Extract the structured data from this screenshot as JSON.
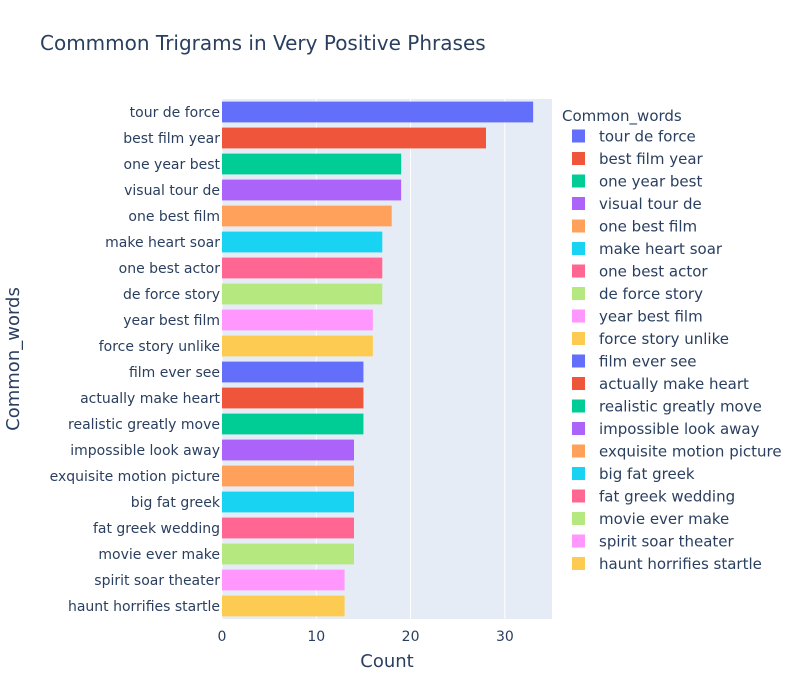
{
  "chart_data": {
    "type": "bar",
    "orientation": "horizontal",
    "title": "Commmon Trigrams in Very Positive Phrases",
    "xlabel": "Count",
    "ylabel": "Common_words",
    "xlim": [
      0,
      35
    ],
    "xticks": [
      "0",
      "10",
      "20",
      "30"
    ],
    "grid": true,
    "legend_title": "Common_words",
    "legend_position": "right",
    "categories": [
      "tour de force",
      "best film year",
      "one year best",
      "visual tour de",
      "one best film",
      "make heart soar",
      "one best actor",
      "de force story",
      "year best film",
      "force story unlike",
      "film ever see",
      "actually make heart",
      "realistic greatly move",
      "impossible look away",
      "exquisite motion picture",
      "big fat greek",
      "fat greek wedding",
      "movie ever make",
      "spirit soar theater",
      "haunt horrifies startle"
    ],
    "values": [
      33,
      28,
      19,
      19,
      18,
      17,
      17,
      17,
      16,
      16,
      15,
      15,
      15,
      14,
      14,
      14,
      14,
      14,
      13,
      13
    ],
    "colors": [
      "#636efa",
      "#EF553B",
      "#00cc96",
      "#ab63fa",
      "#FFA15A",
      "#19d3f3",
      "#FF6692",
      "#B6E880",
      "#FF97FF",
      "#FECB52",
      "#636efa",
      "#EF553B",
      "#00cc96",
      "#ab63fa",
      "#FFA15A",
      "#19d3f3",
      "#FF6692",
      "#B6E880",
      "#FF97FF",
      "#FECB52"
    ],
    "plot_background": "#E5ECF6"
  }
}
